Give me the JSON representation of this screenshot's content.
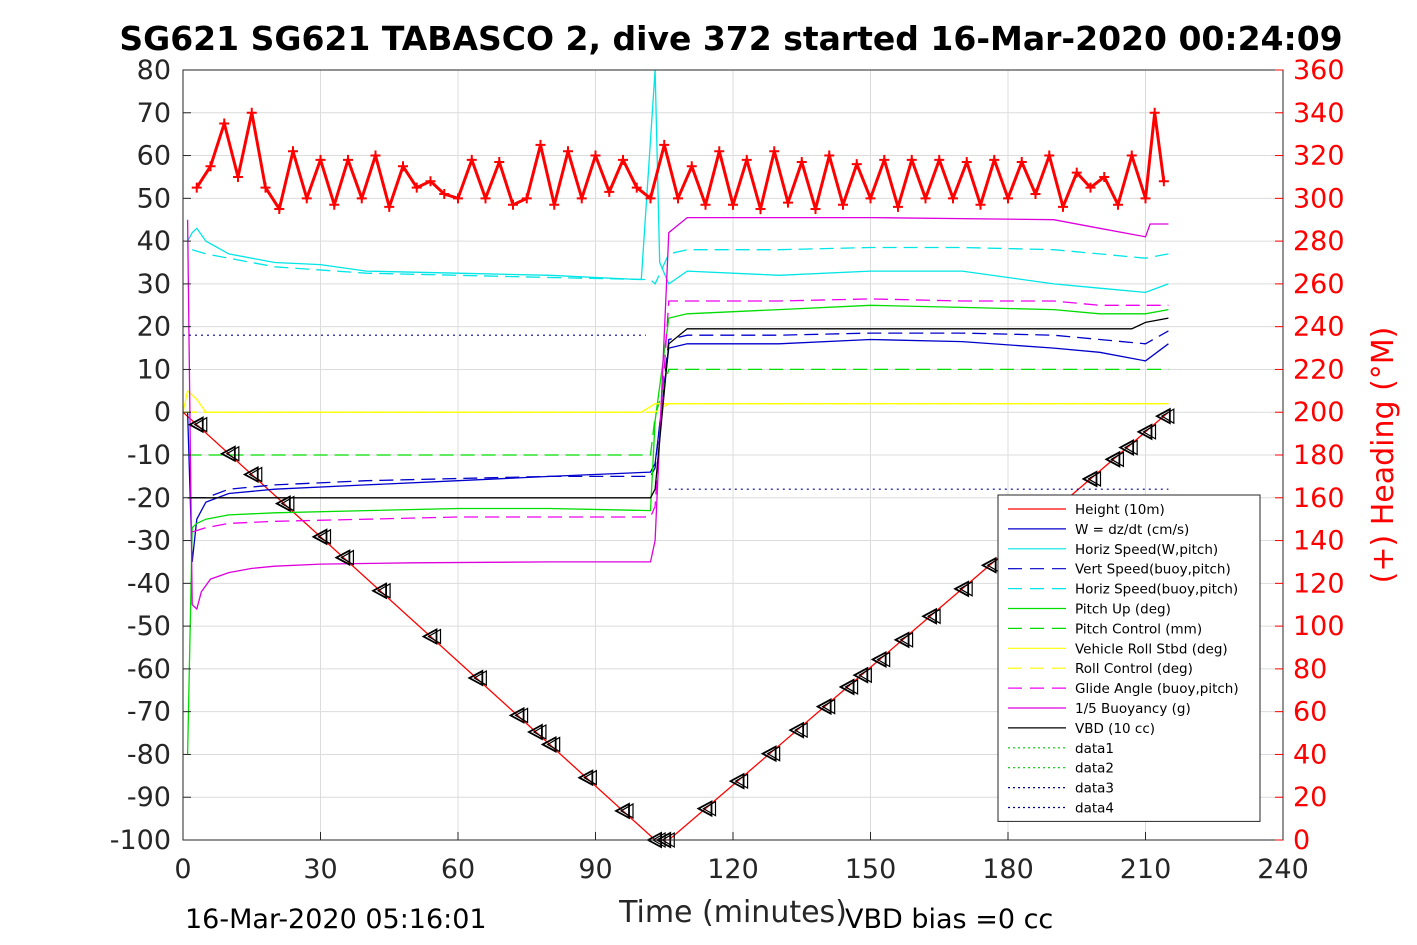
{
  "chart_data": {
    "type": "line",
    "title": "SG621 SG621 TABASCO 2, dive 372 started 16-Mar-2020 00:24:09",
    "xlabel": "Time (minutes)",
    "ylabel": "",
    "y2label": "(+) Heading (°M)",
    "xlim": [
      0,
      240
    ],
    "ylim": [
      -100,
      80
    ],
    "y2lim": [
      0,
      360
    ],
    "xticks": [
      "0",
      "30",
      "60",
      "90",
      "120",
      "150",
      "180",
      "210",
      "240"
    ],
    "yticks": [
      "80",
      "70",
      "60",
      "50",
      "40",
      "30",
      "20",
      "10",
      "0",
      "-10",
      "-20",
      "-30",
      "-40",
      "-50",
      "-60",
      "-70",
      "-80",
      "-90",
      "-100"
    ],
    "y2ticks": [
      "360",
      "340",
      "320",
      "300",
      "280",
      "260",
      "240",
      "220",
      "200",
      "180",
      "160",
      "140",
      "120",
      "100",
      "80",
      "60",
      "40",
      "20",
      "0"
    ],
    "grid": true,
    "legend_position": "lower-right",
    "footer_left": "16-Mar-2020 05:16:01",
    "footer_right": "VBD bias =0 cc",
    "series": [
      {
        "name": "Height (10m)",
        "color": "#ff0000",
        "style": "solid",
        "x": [
          0,
          103,
          104,
          106,
          215
        ],
        "y": [
          0,
          -100,
          -100,
          -100,
          0
        ]
      },
      {
        "name": "W = dz/dt (cm/s)",
        "color": "#0000cc",
        "style": "solid",
        "x": [
          1,
          2,
          3,
          5,
          10,
          20,
          40,
          60,
          80,
          102,
          103,
          106,
          110,
          130,
          150,
          170,
          190,
          200,
          210,
          215
        ],
        "y": [
          0,
          -35,
          -25,
          -21,
          -19,
          -18,
          -17,
          -16,
          -15,
          -14,
          -12,
          15,
          16,
          16,
          17,
          16.5,
          15,
          14,
          12,
          16
        ]
      },
      {
        "name": "Horiz Speed(W,pitch)",
        "color": "#00e5e5",
        "style": "solid",
        "x": [
          1,
          2,
          3,
          5,
          10,
          20,
          30,
          40,
          60,
          80,
          100,
          103,
          104,
          106,
          110,
          130,
          150,
          170,
          190,
          200,
          210,
          215
        ],
        "y": [
          40,
          42,
          43,
          40,
          37,
          35,
          34.5,
          33,
          32.5,
          32,
          31,
          80,
          35,
          30,
          33,
          32,
          33,
          33,
          30,
          29,
          28,
          30
        ]
      },
      {
        "name": "Vert Speed(buoy,pitch)",
        "color": "#0000cc",
        "style": "dashed",
        "x": [
          2,
          5,
          10,
          20,
          40,
          60,
          80,
          102,
          103,
          106,
          110,
          130,
          150,
          170,
          190,
          200,
          210,
          215
        ],
        "y": [
          -20,
          -20,
          -18,
          -17,
          -16,
          -15.5,
          -15,
          -15,
          -13,
          17,
          18,
          18,
          18.5,
          18.5,
          18,
          17,
          16,
          19
        ]
      },
      {
        "name": "Horiz Speed(buoy,pitch)",
        "color": "#00e5e5",
        "style": "dashed",
        "x": [
          2,
          5,
          10,
          20,
          40,
          60,
          80,
          102,
          103,
          106,
          110,
          130,
          150,
          170,
          190,
          200,
          210,
          215
        ],
        "y": [
          38,
          37,
          36,
          34,
          32.5,
          32,
          31.5,
          31,
          30,
          37,
          38,
          38,
          38.5,
          38.5,
          38,
          37,
          36,
          37
        ]
      },
      {
        "name": "Pitch Up (deg)",
        "color": "#00dd00",
        "style": "solid",
        "x": [
          1,
          2,
          3,
          5,
          10,
          20,
          40,
          60,
          80,
          102,
          103,
          106,
          110,
          130,
          150,
          170,
          190,
          200,
          210,
          215
        ],
        "y": [
          -80,
          -27,
          -26,
          -25,
          -24,
          -23.5,
          -23,
          -22.5,
          -22.5,
          -23,
          -2,
          22,
          23,
          24,
          25,
          24.5,
          24,
          23,
          23,
          24
        ]
      },
      {
        "name": "Pitch Control (mm)",
        "color": "#00dd00",
        "style": "dashed",
        "x": [
          1,
          2,
          5,
          50,
          100,
          102,
          103,
          106,
          150,
          215
        ],
        "y": [
          -10,
          -10,
          -10,
          -10,
          -10,
          -10,
          -1,
          10,
          10,
          10
        ]
      },
      {
        "name": "Vehicle Roll Stbd (deg)",
        "color": "#ffff00",
        "style": "solid",
        "x": [
          0,
          1,
          3,
          5,
          10,
          20,
          40,
          60,
          80,
          100,
          103,
          106,
          120,
          140,
          160,
          180,
          200,
          215
        ],
        "y": [
          0,
          5,
          3,
          0,
          0,
          0,
          0,
          0,
          0,
          0,
          2,
          2,
          2,
          2,
          2,
          2,
          2,
          2
        ]
      },
      {
        "name": "Roll Control (deg)",
        "color": "#ffff00",
        "style": "dashed",
        "x": [
          0,
          2,
          5,
          50,
          102,
          103,
          106,
          150,
          215
        ],
        "y": [
          0,
          0,
          0,
          0,
          0,
          0,
          2,
          2,
          2
        ]
      },
      {
        "name": "Glide Angle (buoy,pitch)",
        "color": "#ee00ee",
        "style": "dashed",
        "x": [
          2,
          5,
          10,
          20,
          40,
          60,
          80,
          102,
          103,
          106,
          110,
          130,
          150,
          170,
          190,
          200,
          210,
          215
        ],
        "y": [
          -28,
          -27,
          -26,
          -25.5,
          -25,
          -24.5,
          -24.5,
          -24.5,
          -22,
          26,
          26,
          26,
          26.5,
          26,
          26,
          25,
          25,
          25
        ]
      },
      {
        "name": "1/5 Buoyancy (g)",
        "color": "#dd00dd",
        "style": "solid",
        "x": [
          1,
          2,
          3,
          4,
          6,
          10,
          15,
          20,
          30,
          50,
          80,
          102,
          103,
          106,
          110,
          150,
          190,
          200,
          210,
          211,
          215
        ],
        "y": [
          45,
          -45,
          -46,
          -42,
          -39,
          -37.5,
          -36.5,
          -36,
          -35.5,
          -35.2,
          -35,
          -35,
          -30,
          42,
          45.5,
          45.5,
          45,
          43,
          41,
          44,
          44
        ]
      },
      {
        "name": "VBD (10 cc)",
        "color": "#000000",
        "style": "solid",
        "x": [
          1,
          2,
          5,
          50,
          102,
          103,
          106,
          110,
          150,
          190,
          207,
          210,
          215
        ],
        "y": [
          -20,
          -20,
          -20,
          -20,
          -20,
          -18,
          16,
          19.5,
          19.5,
          19.5,
          19.5,
          21,
          22
        ]
      },
      {
        "name": "data1",
        "color": "#00cc00",
        "style": "dotted",
        "x": [],
        "y": []
      },
      {
        "name": "data2",
        "color": "#00cc00",
        "style": "dotted",
        "x": [],
        "y": []
      },
      {
        "name": "data3",
        "color": "#000099",
        "style": "dotted",
        "x": [
          0,
          101
        ],
        "y": [
          18,
          18
        ]
      },
      {
        "name": "data4",
        "color": "#000099",
        "style": "dotted",
        "x": [
          106,
          215
        ],
        "y": [
          -18,
          -18
        ]
      }
    ],
    "heading": {
      "name": "(+) Heading (°M)",
      "color": "#ff0000",
      "x": [
        3,
        6,
        9,
        12,
        15,
        18,
        21,
        24,
        27,
        30,
        33,
        36,
        39,
        42,
        45,
        48,
        51,
        54,
        57,
        60,
        63,
        66,
        69,
        72,
        75,
        78,
        81,
        84,
        87,
        90,
        93,
        96,
        99,
        102,
        105,
        108,
        111,
        114,
        117,
        120,
        123,
        126,
        129,
        132,
        135,
        138,
        141,
        144,
        147,
        150,
        153,
        156,
        159,
        162,
        165,
        168,
        171,
        174,
        177,
        180,
        183,
        186,
        189,
        192,
        195,
        198,
        201,
        204,
        207,
        210,
        212,
        214
      ],
      "y": [
        305,
        315,
        335,
        310,
        340,
        305,
        295,
        322,
        300,
        318,
        297,
        318,
        300,
        320,
        296,
        315,
        305,
        308,
        302,
        300,
        318,
        300,
        317,
        297,
        300,
        325,
        297,
        322,
        300,
        320,
        303,
        318,
        305,
        300,
        325,
        300,
        315,
        297,
        322,
        297,
        318,
        295,
        322,
        298,
        317,
        295,
        320,
        297,
        316,
        300,
        318,
        296,
        318,
        300,
        318,
        300,
        317,
        297,
        318,
        300,
        317,
        302,
        320,
        296,
        312,
        305,
        310,
        297,
        320,
        300,
        340,
        308
      ]
    },
    "profile_markers": {
      "symbol": "triangle",
      "x": [
        3,
        10,
        15,
        22,
        30,
        35,
        43,
        54,
        64,
        73,
        77,
        80,
        88,
        96,
        103,
        105,
        114,
        121,
        128,
        134,
        140,
        145,
        148,
        152,
        157,
        163,
        170,
        176,
        181,
        190,
        198,
        203,
        206,
        210,
        214
      ]
    }
  }
}
